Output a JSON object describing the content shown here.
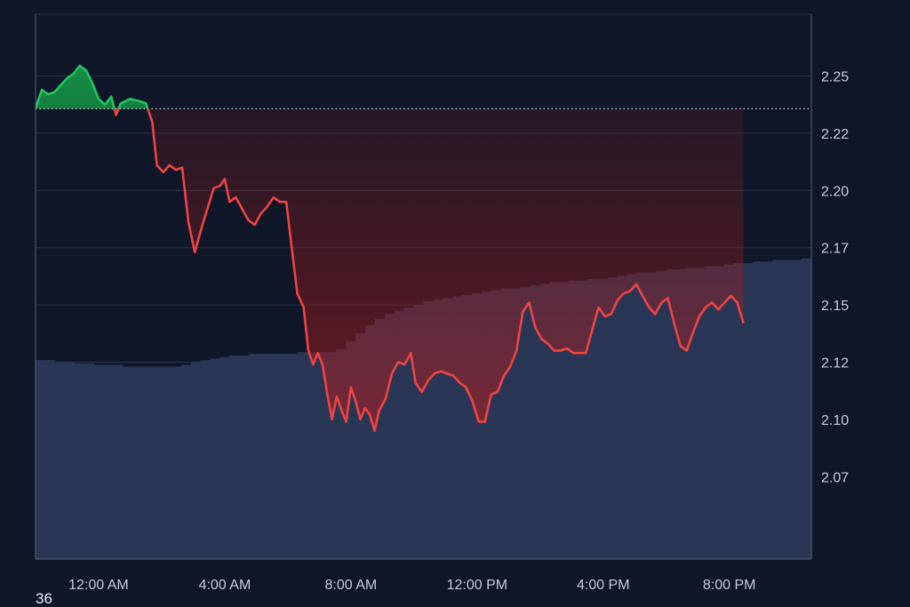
{
  "chart_data": {
    "type": "area",
    "y_tick_labels": [
      "2.25",
      "2.22",
      "2.20",
      "2.17",
      "2.15",
      "2.12",
      "2.10",
      "2.07"
    ],
    "y_ticks": [
      2.25,
      2.225,
      2.2,
      2.175,
      2.15,
      2.125,
      2.1,
      2.075
    ],
    "ylim": [
      2.039,
      2.277
    ],
    "x_tick_labels": [
      "12:00 AM",
      "4:00 AM",
      "8:00 AM",
      "12:00 PM",
      "4:00 PM",
      "8:00 PM"
    ],
    "x_ticks": [
      0,
      4,
      8,
      12,
      16,
      20
    ],
    "xlim": [
      -2,
      22.6
    ],
    "baseline": 2.2357,
    "grid": true,
    "colors": {
      "background": "#0f1729",
      "grid": "#2a3346",
      "axis": "#5a6270",
      "tick_text": "#c8ccd4",
      "up": "#22c55e",
      "down": "#ef4444",
      "volume": "#2a3656",
      "baseline": "#cfd3da"
    },
    "series": [
      {
        "values": [
          [
            -2.0,
            2.236
          ],
          [
            -1.8,
            2.244
          ],
          [
            -1.6,
            2.242
          ],
          [
            -1.4,
            2.243
          ],
          [
            -1.2,
            2.246
          ],
          [
            -1.0,
            2.249
          ],
          [
            -0.8,
            2.251
          ],
          [
            -0.6,
            2.2545
          ],
          [
            -0.4,
            2.2525
          ],
          [
            -0.2,
            2.247
          ],
          [
            0.0,
            2.24
          ],
          [
            0.2,
            2.2375
          ],
          [
            0.4,
            2.241
          ],
          [
            0.55,
            2.233
          ],
          [
            0.7,
            2.238
          ],
          [
            1.0,
            2.24
          ],
          [
            1.3,
            2.239
          ],
          [
            1.5,
            2.238
          ],
          [
            1.7,
            2.23
          ],
          [
            1.85,
            2.211
          ],
          [
            2.05,
            2.208
          ],
          [
            2.25,
            2.211
          ],
          [
            2.45,
            2.209
          ],
          [
            2.65,
            2.21
          ],
          [
            2.85,
            2.186
          ],
          [
            3.05,
            2.173
          ],
          [
            3.25,
            2.183
          ],
          [
            3.45,
            2.192
          ],
          [
            3.65,
            2.201
          ],
          [
            3.85,
            2.202
          ],
          [
            4.0,
            2.205
          ],
          [
            4.15,
            2.195
          ],
          [
            4.35,
            2.197
          ],
          [
            4.55,
            2.192
          ],
          [
            4.75,
            2.187
          ],
          [
            4.95,
            2.185
          ],
          [
            5.15,
            2.19
          ],
          [
            5.35,
            2.193
          ],
          [
            5.55,
            2.197
          ],
          [
            5.75,
            2.195
          ],
          [
            5.95,
            2.195
          ],
          [
            6.15,
            2.172
          ],
          [
            6.3,
            2.155
          ],
          [
            6.5,
            2.149
          ],
          [
            6.65,
            2.13
          ],
          [
            6.8,
            2.124
          ],
          [
            6.95,
            2.129
          ],
          [
            7.1,
            2.124
          ],
          [
            7.25,
            2.111
          ],
          [
            7.4,
            2.1
          ],
          [
            7.55,
            2.11
          ],
          [
            7.7,
            2.104
          ],
          [
            7.85,
            2.099
          ],
          [
            8.0,
            2.114
          ],
          [
            8.15,
            2.108
          ],
          [
            8.3,
            2.1
          ],
          [
            8.45,
            2.105
          ],
          [
            8.6,
            2.102
          ],
          [
            8.75,
            2.095
          ],
          [
            8.9,
            2.104
          ],
          [
            9.1,
            2.109
          ],
          [
            9.3,
            2.12
          ],
          [
            9.5,
            2.125
          ],
          [
            9.7,
            2.124
          ],
          [
            9.9,
            2.129
          ],
          [
            10.05,
            2.116
          ],
          [
            10.25,
            2.112
          ],
          [
            10.45,
            2.117
          ],
          [
            10.65,
            2.12
          ],
          [
            10.85,
            2.121
          ],
          [
            11.05,
            2.12
          ],
          [
            11.25,
            2.119
          ],
          [
            11.45,
            2.116
          ],
          [
            11.65,
            2.114
          ],
          [
            11.85,
            2.108
          ],
          [
            12.05,
            2.099
          ],
          [
            12.25,
            2.099
          ],
          [
            12.45,
            2.111
          ],
          [
            12.65,
            2.112
          ],
          [
            12.85,
            2.119
          ],
          [
            13.05,
            2.123
          ],
          [
            13.25,
            2.13
          ],
          [
            13.45,
            2.147
          ],
          [
            13.65,
            2.151
          ],
          [
            13.85,
            2.14
          ],
          [
            14.05,
            2.135
          ],
          [
            14.25,
            2.133
          ],
          [
            14.45,
            2.13
          ],
          [
            14.65,
            2.13
          ],
          [
            14.85,
            2.131
          ],
          [
            15.05,
            2.129
          ],
          [
            15.25,
            2.129
          ],
          [
            15.45,
            2.129
          ],
          [
            15.65,
            2.139
          ],
          [
            15.85,
            2.149
          ],
          [
            16.05,
            2.145
          ],
          [
            16.25,
            2.146
          ],
          [
            16.45,
            2.152
          ],
          [
            16.65,
            2.155
          ],
          [
            16.85,
            2.156
          ],
          [
            17.05,
            2.159
          ],
          [
            17.25,
            2.154
          ],
          [
            17.45,
            2.149
          ],
          [
            17.65,
            2.146
          ],
          [
            17.85,
            2.151
          ],
          [
            18.05,
            2.153
          ],
          [
            18.25,
            2.142
          ],
          [
            18.45,
            2.132
          ],
          [
            18.65,
            2.13
          ],
          [
            18.85,
            2.138
          ],
          [
            19.05,
            2.145
          ],
          [
            19.25,
            2.149
          ],
          [
            19.45,
            2.151
          ],
          [
            19.65,
            2.148
          ],
          [
            19.85,
            2.151
          ],
          [
            20.05,
            2.154
          ],
          [
            20.25,
            2.151
          ],
          [
            20.45,
            2.142
          ]
        ]
      }
    ],
    "volume": [
      0.125,
      0.125,
      0.124,
      0.124,
      0.123,
      0.123,
      0.122,
      0.122,
      0.122,
      0.121,
      0.121,
      0.121,
      0.121,
      0.121,
      0.121,
      0.122,
      0.124,
      0.125,
      0.126,
      0.127,
      0.128,
      0.128,
      0.129,
      0.129,
      0.129,
      0.129,
      0.129,
      0.13,
      0.13,
      0.13,
      0.13,
      0.132,
      0.137,
      0.142,
      0.147,
      0.151,
      0.154,
      0.156,
      0.158,
      0.16,
      0.162,
      0.163,
      0.164,
      0.165,
      0.166,
      0.167,
      0.168,
      0.169,
      0.17,
      0.17,
      0.171,
      0.172,
      0.173,
      0.174,
      0.174,
      0.175,
      0.175,
      0.176,
      0.176,
      0.177,
      0.178,
      0.179,
      0.18,
      0.18,
      0.181,
      0.182,
      0.182,
      0.183,
      0.183,
      0.184,
      0.184,
      0.185,
      0.186,
      0.186,
      0.187,
      0.187,
      0.188,
      0.188,
      0.188,
      0.189
    ]
  },
  "corner_label": "36"
}
